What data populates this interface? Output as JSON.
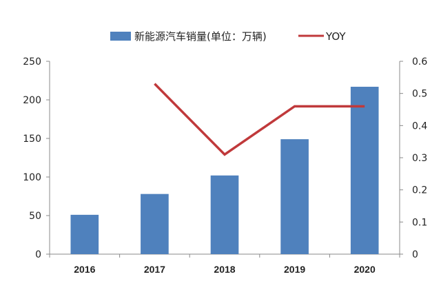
{
  "chart_data": {
    "type": "bar",
    "categories": [
      "2016",
      "2017",
      "2018",
      "2019",
      "2020"
    ],
    "series": [
      {
        "name": "新能源汽车销量(单位：万辆)",
        "type": "bar",
        "axis": "left",
        "color": "#4f81bd",
        "values": [
          51,
          78,
          102,
          149,
          217
        ]
      },
      {
        "name": "YOY",
        "type": "line",
        "axis": "right",
        "color": "#c0393b",
        "values": [
          null,
          0.53,
          0.31,
          0.46,
          0.46
        ]
      }
    ],
    "y_left": {
      "ylim": [
        0,
        250
      ],
      "ticks": [
        "0",
        "50",
        "100",
        "150",
        "200",
        "250"
      ]
    },
    "y_right": {
      "ylim": [
        0,
        0.6
      ],
      "ticks": [
        "0",
        "0.1",
        "0.2",
        "0.3",
        "0.4",
        "0.5",
        "0.6"
      ]
    },
    "legend_position": "top-center",
    "grid": false
  }
}
